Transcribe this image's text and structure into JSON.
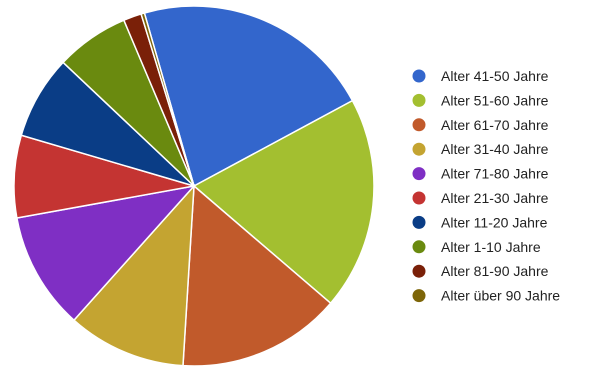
{
  "chart_data": {
    "type": "pie",
    "title": "",
    "legend_position": "right",
    "start_angle_deg": 344,
    "slices": [
      {
        "label": "Alter 41-50 Jahre",
        "value": 21.3,
        "color": "#3366cc"
      },
      {
        "label": "Alter 51-60 Jahre",
        "value": 18.9,
        "color": "#a3bf30"
      },
      {
        "label": "Alter 61-70 Jahre",
        "value": 14.5,
        "color": "#c15a2b"
      },
      {
        "label": "Alter 31-40 Jahre",
        "value": 10.5,
        "color": "#c4a431"
      },
      {
        "label": "Alter 71-80 Jahre",
        "value": 10.4,
        "color": "#7f2fc4"
      },
      {
        "label": "Alter 21-30 Jahre",
        "value": 7.3,
        "color": "#c43432"
      },
      {
        "label": "Alter 11-20 Jahre",
        "value": 7.4,
        "color": "#0a3d86"
      },
      {
        "label": "Alter 1-10 Jahre",
        "value": 6.5,
        "color": "#6a8a0f"
      },
      {
        "label": "Alter 81-90 Jahre",
        "value": 1.6,
        "color": "#7a2008"
      },
      {
        "label": "Alter über 90 Jahre",
        "value": 0.3,
        "color": "#7d6508"
      }
    ]
  }
}
